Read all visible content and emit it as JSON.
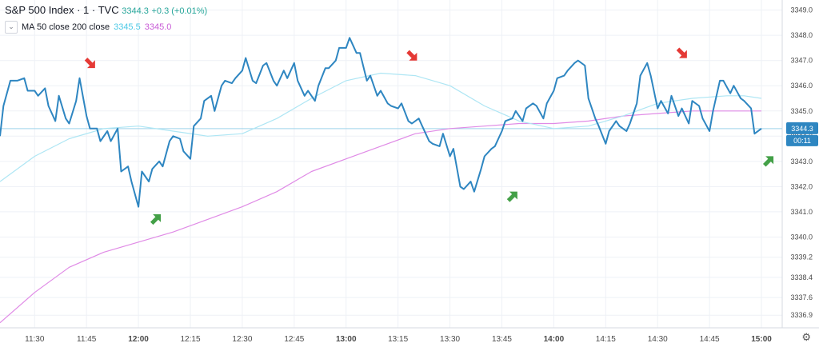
{
  "legend": {
    "symbol": "S&P 500 Index · 1 · TVC",
    "last": "3344.3",
    "change": "+0.3 (+0.01%)",
    "ma_label": "MA 50 close 200 close",
    "ma50_value": "3345.5",
    "ma200_value": "3345.0"
  },
  "price_tag": {
    "price": "3344.3",
    "countdown": "00:11"
  },
  "colors": {
    "price": "#2e86c1",
    "ma50": "#aee6f4",
    "ma200": "#e08be6",
    "last_line": "#9fd3ea",
    "tag": "#2e86c1",
    "arrow_down": "#e53935",
    "arrow_up": "#43a047",
    "grid": "#eef1f6"
  },
  "chart_data": {
    "type": "line",
    "title": "S&P 500 Index · 1 · TVC",
    "ylim": [
      3336.4,
      3349.4
    ],
    "xlim": [
      "11:20",
      "15:06"
    ],
    "y_ticks": [
      "3336.9",
      "3337.6",
      "3338.4",
      "3339.2",
      "3340.0",
      "3341.0",
      "3342.0",
      "3343.0",
      "3344.0",
      "3345.0",
      "3346.0",
      "3347.0",
      "3348.0",
      "3349.0"
    ],
    "x_ticks": [
      "11:30",
      "11:45",
      "12:00",
      "12:15",
      "12:30",
      "12:45",
      "13:00",
      "13:15",
      "13:30",
      "13:45",
      "14:00",
      "14:15",
      "14:30",
      "14:45",
      "15:00"
    ],
    "bold_x_ticks": [
      "12:00",
      "13:00",
      "14:00",
      "15:00"
    ],
    "grid": true,
    "series": [
      {
        "name": "S&P 500 Index",
        "role": "price",
        "points": [
          [
            "11:20",
            3344.0
          ],
          [
            "11:21",
            3345.2
          ],
          [
            "11:23",
            3346.2
          ],
          [
            "11:25",
            3346.2
          ],
          [
            "11:27",
            3346.3
          ],
          [
            "11:28",
            3345.8
          ],
          [
            "11:30",
            3345.8
          ],
          [
            "11:31",
            3345.6
          ],
          [
            "11:33",
            3345.9
          ],
          [
            "11:34",
            3345.2
          ],
          [
            "11:36",
            3344.6
          ],
          [
            "11:37",
            3345.6
          ],
          [
            "11:39",
            3344.7
          ],
          [
            "11:40",
            3344.5
          ],
          [
            "11:42",
            3345.4
          ],
          [
            "11:43",
            3346.3
          ],
          [
            "11:45",
            3344.8
          ],
          [
            "11:46",
            3344.3
          ],
          [
            "11:48",
            3344.3
          ],
          [
            "11:49",
            3343.8
          ],
          [
            "11:51",
            3344.2
          ],
          [
            "11:52",
            3343.8
          ],
          [
            "11:54",
            3344.3
          ],
          [
            "11:55",
            3342.6
          ],
          [
            "11:57",
            3342.8
          ],
          [
            "11:58",
            3342.2
          ],
          [
            "12:00",
            3341.2
          ],
          [
            "12:01",
            3342.6
          ],
          [
            "12:03",
            3342.2
          ],
          [
            "12:04",
            3342.7
          ],
          [
            "12:06",
            3343.0
          ],
          [
            "12:07",
            3342.8
          ],
          [
            "12:09",
            3343.8
          ],
          [
            "12:10",
            3344.0
          ],
          [
            "12:12",
            3343.9
          ],
          [
            "12:13",
            3343.4
          ],
          [
            "12:15",
            3343.1
          ],
          [
            "12:16",
            3344.4
          ],
          [
            "12:18",
            3344.7
          ],
          [
            "12:19",
            3345.4
          ],
          [
            "12:21",
            3345.6
          ],
          [
            "12:22",
            3345.0
          ],
          [
            "12:24",
            3346.0
          ],
          [
            "12:25",
            3346.2
          ],
          [
            "12:27",
            3346.1
          ],
          [
            "12:28",
            3346.3
          ],
          [
            "12:30",
            3346.6
          ],
          [
            "12:31",
            3347.1
          ],
          [
            "12:33",
            3346.2
          ],
          [
            "12:34",
            3346.1
          ],
          [
            "12:36",
            3346.8
          ],
          [
            "12:37",
            3346.9
          ],
          [
            "12:39",
            3346.2
          ],
          [
            "12:40",
            3346.0
          ],
          [
            "12:42",
            3346.6
          ],
          [
            "12:43",
            3346.3
          ],
          [
            "12:45",
            3346.9
          ],
          [
            "12:46",
            3346.2
          ],
          [
            "12:48",
            3345.6
          ],
          [
            "12:49",
            3345.8
          ],
          [
            "12:51",
            3345.4
          ],
          [
            "12:52",
            3346.0
          ],
          [
            "12:54",
            3346.7
          ],
          [
            "12:55",
            3346.7
          ],
          [
            "12:57",
            3347.0
          ],
          [
            "12:58",
            3347.5
          ],
          [
            "13:00",
            3347.5
          ],
          [
            "13:01",
            3347.9
          ],
          [
            "13:03",
            3347.3
          ],
          [
            "13:04",
            3347.3
          ],
          [
            "13:06",
            3346.2
          ],
          [
            "13:07",
            3346.4
          ],
          [
            "13:09",
            3345.6
          ],
          [
            "13:10",
            3345.8
          ],
          [
            "13:12",
            3345.3
          ],
          [
            "13:13",
            3345.2
          ],
          [
            "13:15",
            3345.1
          ],
          [
            "13:16",
            3345.3
          ],
          [
            "13:18",
            3344.6
          ],
          [
            "13:19",
            3344.5
          ],
          [
            "13:21",
            3344.7
          ],
          [
            "13:22",
            3344.4
          ],
          [
            "13:24",
            3343.8
          ],
          [
            "13:25",
            3343.7
          ],
          [
            "13:27",
            3343.6
          ],
          [
            "13:28",
            3344.1
          ],
          [
            "13:30",
            3343.2
          ],
          [
            "13:31",
            3343.5
          ],
          [
            "13:33",
            3342.0
          ],
          [
            "13:34",
            3341.9
          ],
          [
            "13:36",
            3342.2
          ],
          [
            "13:37",
            3341.8
          ],
          [
            "13:39",
            3342.7
          ],
          [
            "13:40",
            3343.2
          ],
          [
            "13:42",
            3343.5
          ],
          [
            "13:43",
            3343.6
          ],
          [
            "13:45",
            3344.2
          ],
          [
            "13:46",
            3344.6
          ],
          [
            "13:48",
            3344.7
          ],
          [
            "13:49",
            3345.0
          ],
          [
            "13:51",
            3344.6
          ],
          [
            "13:52",
            3345.1
          ],
          [
            "13:54",
            3345.3
          ],
          [
            "13:55",
            3345.2
          ],
          [
            "13:57",
            3344.7
          ],
          [
            "13:58",
            3345.3
          ],
          [
            "14:00",
            3345.8
          ],
          [
            "14:01",
            3346.3
          ],
          [
            "14:03",
            3346.4
          ],
          [
            "14:04",
            3346.6
          ],
          [
            "14:06",
            3346.9
          ],
          [
            "14:07",
            3347.0
          ],
          [
            "14:09",
            3346.8
          ],
          [
            "14:10",
            3345.5
          ],
          [
            "14:12",
            3344.7
          ],
          [
            "14:13",
            3344.4
          ],
          [
            "14:15",
            3343.7
          ],
          [
            "14:16",
            3344.2
          ],
          [
            "14:18",
            3344.6
          ],
          [
            "14:19",
            3344.4
          ],
          [
            "14:21",
            3344.2
          ],
          [
            "14:22",
            3344.5
          ],
          [
            "14:24",
            3345.3
          ],
          [
            "14:25",
            3346.4
          ],
          [
            "14:27",
            3346.9
          ],
          [
            "14:28",
            3346.4
          ],
          [
            "14:30",
            3345.1
          ],
          [
            "14:31",
            3345.4
          ],
          [
            "14:33",
            3344.9
          ],
          [
            "14:34",
            3345.6
          ],
          [
            "14:36",
            3344.8
          ],
          [
            "14:37",
            3345.1
          ],
          [
            "14:39",
            3344.5
          ],
          [
            "14:40",
            3345.4
          ],
          [
            "14:42",
            3345.2
          ],
          [
            "14:43",
            3344.7
          ],
          [
            "14:45",
            3344.2
          ],
          [
            "14:46",
            3345.0
          ],
          [
            "14:48",
            3346.2
          ],
          [
            "14:49",
            3346.2
          ],
          [
            "14:51",
            3345.7
          ],
          [
            "14:52",
            3346.0
          ],
          [
            "14:54",
            3345.5
          ],
          [
            "14:55",
            3345.4
          ],
          [
            "14:57",
            3345.1
          ],
          [
            "14:58",
            3344.1
          ],
          [
            "15:00",
            3344.3
          ]
        ]
      },
      {
        "name": "MA 50",
        "role": "ma50",
        "points": [
          [
            "11:20",
            3342.2
          ],
          [
            "11:30",
            3343.2
          ],
          [
            "11:40",
            3343.9
          ],
          [
            "11:50",
            3344.3
          ],
          [
            "12:00",
            3344.4
          ],
          [
            "12:10",
            3344.2
          ],
          [
            "12:20",
            3344.0
          ],
          [
            "12:30",
            3344.1
          ],
          [
            "12:40",
            3344.7
          ],
          [
            "12:50",
            3345.5
          ],
          [
            "13:00",
            3346.2
          ],
          [
            "13:10",
            3346.5
          ],
          [
            "13:20",
            3346.4
          ],
          [
            "13:30",
            3346.0
          ],
          [
            "13:40",
            3345.2
          ],
          [
            "13:50",
            3344.6
          ],
          [
            "14:00",
            3344.3
          ],
          [
            "14:10",
            3344.4
          ],
          [
            "14:20",
            3344.8
          ],
          [
            "14:30",
            3345.3
          ],
          [
            "14:40",
            3345.5
          ],
          [
            "14:50",
            3345.6
          ],
          [
            "14:55",
            3345.6
          ],
          [
            "15:00",
            3345.5
          ]
        ]
      },
      {
        "name": "MA 200",
        "role": "ma200",
        "points": [
          [
            "11:20",
            3336.6
          ],
          [
            "11:30",
            3337.8
          ],
          [
            "11:40",
            3338.8
          ],
          [
            "11:50",
            3339.4
          ],
          [
            "12:00",
            3339.8
          ],
          [
            "12:10",
            3340.2
          ],
          [
            "12:20",
            3340.7
          ],
          [
            "12:30",
            3341.2
          ],
          [
            "12:40",
            3341.8
          ],
          [
            "12:50",
            3342.6
          ],
          [
            "13:00",
            3343.1
          ],
          [
            "13:10",
            3343.6
          ],
          [
            "13:20",
            3344.1
          ],
          [
            "13:30",
            3344.3
          ],
          [
            "13:40",
            3344.4
          ],
          [
            "13:50",
            3344.5
          ],
          [
            "14:00",
            3344.5
          ],
          [
            "14:10",
            3344.6
          ],
          [
            "14:20",
            3344.8
          ],
          [
            "14:30",
            3344.9
          ],
          [
            "14:40",
            3345.0
          ],
          [
            "14:50",
            3345.0
          ],
          [
            "15:00",
            3345.0
          ]
        ]
      }
    ],
    "last_price": 3344.3,
    "annotations": [
      {
        "type": "arrow",
        "direction": "down",
        "x": "11:46",
        "y": 3346.9
      },
      {
        "type": "arrow",
        "direction": "up",
        "x": "12:05",
        "y": 3340.7
      },
      {
        "type": "arrow",
        "direction": "down",
        "x": "13:19",
        "y": 3347.2
      },
      {
        "type": "arrow",
        "direction": "up",
        "x": "13:48",
        "y": 3341.6
      },
      {
        "type": "arrow",
        "direction": "down",
        "x": "14:37",
        "y": 3347.3
      },
      {
        "type": "arrow",
        "direction": "up",
        "x": "15:02",
        "y": 3343.0
      }
    ]
  }
}
